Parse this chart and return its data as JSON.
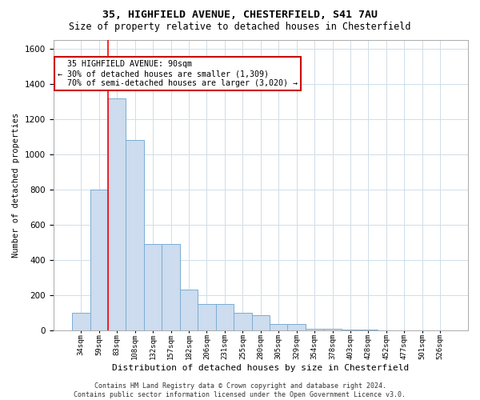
{
  "title1": "35, HIGHFIELD AVENUE, CHESTERFIELD, S41 7AU",
  "title2": "Size of property relative to detached houses in Chesterfield",
  "xlabel": "Distribution of detached houses by size in Chesterfield",
  "ylabel": "Number of detached properties",
  "bin_labels": [
    "34sqm",
    "59sqm",
    "83sqm",
    "108sqm",
    "132sqm",
    "157sqm",
    "182sqm",
    "206sqm",
    "231sqm",
    "255sqm",
    "280sqm",
    "305sqm",
    "329sqm",
    "354sqm",
    "378sqm",
    "403sqm",
    "428sqm",
    "452sqm",
    "477sqm",
    "501sqm",
    "526sqm"
  ],
  "bar_values": [
    100,
    800,
    1320,
    1080,
    490,
    490,
    230,
    150,
    150,
    100,
    85,
    35,
    35,
    10,
    10,
    5,
    3,
    2,
    2,
    2,
    2
  ],
  "bar_color": "#cddcee",
  "bar_edge_color": "#7aadd4",
  "grid_color": "#d0dde8",
  "background_color": "#ffffff",
  "red_line_x": 1.5,
  "annotation_text": "  35 HIGHFIELD AVENUE: 90sqm\n← 30% of detached houses are smaller (1,309)\n  70% of semi-detached houses are larger (3,020) →",
  "annotation_box_color": "#ffffff",
  "annotation_box_edge": "#cc0000",
  "footer": "Contains HM Land Registry data © Crown copyright and database right 2024.\nContains public sector information licensed under the Open Government Licence v3.0.",
  "ylim": [
    0,
    1650
  ],
  "yticks": [
    0,
    200,
    400,
    600,
    800,
    1000,
    1200,
    1400,
    1600
  ]
}
